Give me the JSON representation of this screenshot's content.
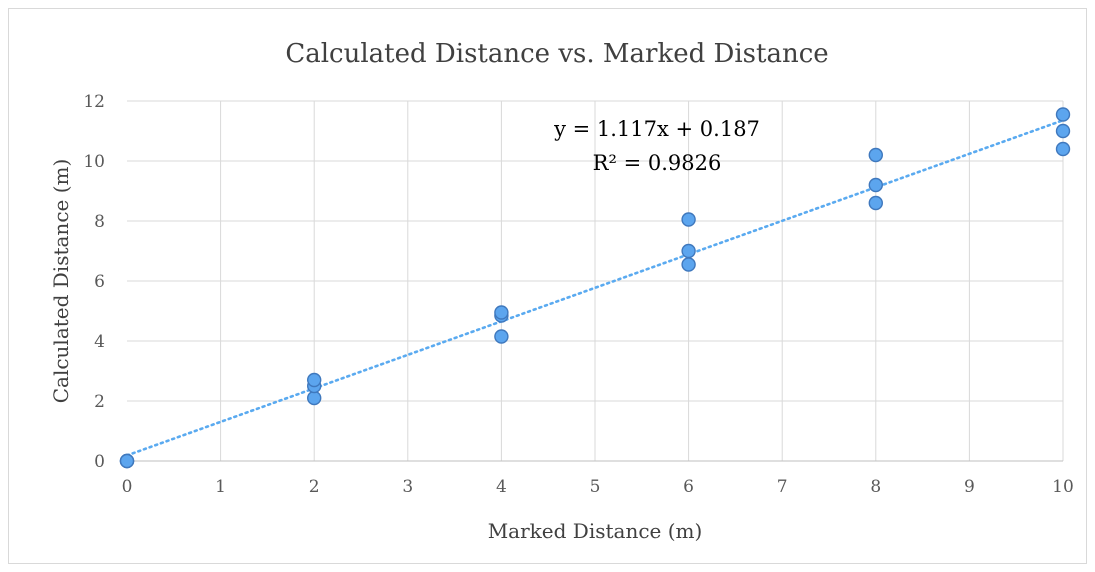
{
  "chart_data": {
    "type": "scatter",
    "title": "Calculated Distance vs. Marked Distance",
    "xlabel": "Marked Distance (m)",
    "ylabel": "Calculated Distance (m)",
    "xlim": [
      0,
      10
    ],
    "ylim": [
      0,
      12
    ],
    "x_ticks": [
      "0",
      "1",
      "2",
      "3",
      "4",
      "5",
      "6",
      "7",
      "8",
      "9",
      "10"
    ],
    "y_ticks": [
      "0",
      "2",
      "4",
      "6",
      "8",
      "10",
      "12"
    ],
    "grid": true,
    "legend": "none",
    "marker_color": "#5ca5ee",
    "marker_edge_color": "#3f78bd",
    "trendline_color": "#5aaaf0",
    "series": [
      {
        "points": [
          {
            "x": 0,
            "y": 0.0
          },
          {
            "x": 0,
            "y": 0.0
          },
          {
            "x": 0,
            "y": 0.0
          },
          {
            "x": 2,
            "y": 2.1
          },
          {
            "x": 2,
            "y": 2.5
          },
          {
            "x": 2,
            "y": 2.7
          },
          {
            "x": 4,
            "y": 4.15
          },
          {
            "x": 4,
            "y": 4.85
          },
          {
            "x": 4,
            "y": 4.95
          },
          {
            "x": 6,
            "y": 6.55
          },
          {
            "x": 6,
            "y": 7.0
          },
          {
            "x": 6,
            "y": 8.05
          },
          {
            "x": 8,
            "y": 8.6
          },
          {
            "x": 8,
            "y": 9.2
          },
          {
            "x": 8,
            "y": 10.2
          },
          {
            "x": 10,
            "y": 10.4
          },
          {
            "x": 10,
            "y": 11.0
          },
          {
            "x": 10,
            "y": 11.55
          }
        ]
      }
    ],
    "trendline": {
      "type": "linear",
      "slope": 1.117,
      "intercept": 0.187,
      "equation_label": "y = 1.117x + 0.187",
      "r2_label": "R² = 0.9826"
    }
  }
}
